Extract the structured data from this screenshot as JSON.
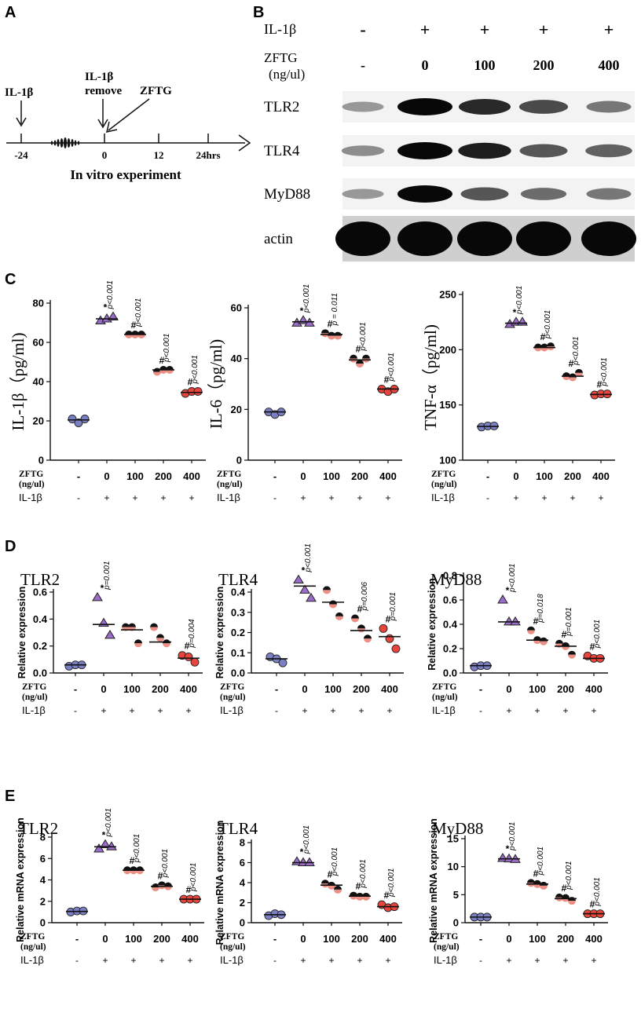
{
  "panel_letters": [
    "A",
    "B",
    "C",
    "D",
    "E"
  ],
  "timeline": {
    "il1b": "IL-1β",
    "remove_l1": "IL-1β",
    "remove_l2": "remove",
    "zftg": "ZFTG",
    "ticks": [
      "-24",
      "0",
      "12",
      "24hrs"
    ],
    "caption": "In vitro experiment"
  },
  "blot": {
    "il1b_label": "IL-1β",
    "zftg_label_l1": "ZFTG",
    "zftg_label_l2": "(ng/ul)",
    "il1b_signs": [
      "-",
      "+",
      "+",
      "+",
      "+"
    ],
    "zftg_doses": [
      "-",
      "0",
      "100",
      "200",
      "400"
    ],
    "rows": [
      {
        "name": "TLR2",
        "intensity": [
          0.35,
          1.0,
          0.85,
          0.7,
          0.5
        ]
      },
      {
        "name": "TLR4",
        "intensity": [
          0.4,
          1.0,
          0.9,
          0.65,
          0.6
        ]
      },
      {
        "name": "MyD88",
        "intensity": [
          0.35,
          1.0,
          0.65,
          0.55,
          0.5
        ]
      },
      {
        "name": "actin",
        "intensity": [
          1.0,
          1.0,
          1.0,
          1.0,
          1.0
        ]
      }
    ]
  },
  "axis_labels": {
    "zftg_l1": "ZFTG",
    "zftg_l2": "(ng/ul)",
    "il1b": "IL-1β",
    "doses": [
      "-",
      "0",
      "100",
      "200",
      "400"
    ],
    "il1b_signs": [
      "-",
      "+",
      "+",
      "+",
      "+"
    ]
  },
  "colors": {
    "control": "#7b7fc4",
    "il1b": "#9b6cc9",
    "d100": "#ec8f85",
    "d200": "#ec8f85",
    "d400": "#e8453c",
    "black": "#111111"
  },
  "chart_data": [
    {
      "id": "C1",
      "panel": "C",
      "type": "scatter",
      "ylabel": "IL-1β（pg/ml)",
      "ylabel_style": "serif",
      "ylim": [
        0,
        80
      ],
      "yticks": [
        "0",
        "20",
        "40",
        "60",
        "80"
      ],
      "categories": [
        "-",
        "0",
        "100",
        "200",
        "400"
      ],
      "points": [
        [
          21,
          19,
          21
        ],
        [
          71,
          72,
          73
        ],
        [
          64,
          64,
          64
        ],
        [
          45,
          46,
          46
        ],
        [
          34,
          35,
          35
        ]
      ],
      "means": [
        20.5,
        72,
        64,
        46,
        34.5
      ],
      "stars": [
        "",
        "*",
        "#",
        "#",
        "#"
      ],
      "pvalues": [
        "",
        "p<0.001",
        "p<0.001",
        "p<0.001",
        "p<0.001"
      ]
    },
    {
      "id": "C2",
      "panel": "C",
      "type": "scatter",
      "ylabel": "IL-6（pg/ml)",
      "ylabel_style": "serif",
      "ylim": [
        0,
        60
      ],
      "yticks": [
        "0",
        "20",
        "40",
        "60"
      ],
      "categories": [
        "-",
        "0",
        "100",
        "200",
        "400"
      ],
      "points": [
        [
          19,
          18,
          19
        ],
        [
          54,
          55,
          54
        ],
        [
          50,
          49,
          49
        ],
        [
          40,
          38,
          40
        ],
        [
          28,
          27,
          28
        ]
      ],
      "means": [
        19,
        54.5,
        49.5,
        39.5,
        28
      ],
      "stars": [
        "",
        "*",
        "#",
        "#",
        "#"
      ],
      "pvalues": [
        "",
        "p<0.001",
        "p = 0.011",
        "p<0.001",
        "p<0.001"
      ]
    },
    {
      "id": "C3",
      "panel": "C",
      "type": "scatter",
      "ylabel": "TNF-α（pg/ml)",
      "ylabel_style": "serif",
      "ylim": [
        100,
        250
      ],
      "yticks": [
        "100",
        "150",
        "200",
        "250"
      ],
      "categories": [
        "-",
        "0",
        "100",
        "200",
        "400"
      ],
      "points": [
        [
          130,
          131,
          131
        ],
        [
          223,
          225,
          225
        ],
        [
          202,
          202,
          203
        ],
        [
          176,
          175,
          179
        ],
        [
          159,
          160,
          160
        ]
      ],
      "means": [
        130.5,
        224,
        202,
        176,
        159.5
      ],
      "stars": [
        "",
        "*",
        "#",
        "#",
        "#"
      ],
      "pvalues": [
        "",
        "p<0.001",
        "p<0.001",
        "p<0.001",
        "p<0.001"
      ]
    },
    {
      "id": "D1",
      "panel": "D",
      "type": "scatter",
      "title": "TLR2",
      "ylabel": "Relative expression",
      "ylim": [
        0,
        0.6
      ],
      "yticks": [
        "0.0",
        "0.2",
        "0.4",
        "0.6"
      ],
      "categories": [
        "-",
        "0",
        "100",
        "200",
        "400"
      ],
      "points": [
        [
          0.05,
          0.06,
          0.06
        ],
        [
          0.56,
          0.37,
          0.28
        ],
        [
          0.34,
          0.34,
          0.22
        ],
        [
          0.34,
          0.26,
          0.22
        ],
        [
          0.13,
          0.12,
          0.08
        ]
      ],
      "means": [
        0.06,
        0.36,
        0.32,
        0.23,
        0.11
      ],
      "stars": [
        "",
        "*",
        "",
        "",
        "#"
      ],
      "pvalues": [
        "",
        "p=0.001",
        "",
        "",
        "p=0.004"
      ]
    },
    {
      "id": "D2",
      "panel": "D",
      "type": "scatter",
      "title": "TLR4",
      "ylabel": "Relative expression",
      "ylim": [
        0,
        0.4
      ],
      "yticks": [
        "0.0",
        "0.1",
        "0.2",
        "0.3",
        "0.4"
      ],
      "categories": [
        "-",
        "0",
        "100",
        "200",
        "400"
      ],
      "points": [
        [
          0.08,
          0.07,
          0.05
        ],
        [
          0.46,
          0.41,
          0.37
        ],
        [
          0.41,
          0.34,
          0.28
        ],
        [
          0.27,
          0.22,
          0.17
        ],
        [
          0.22,
          0.17,
          0.12
        ]
      ],
      "means": [
        0.07,
        0.43,
        0.35,
        0.21,
        0.18
      ],
      "stars": [
        "",
        "*",
        "",
        "#",
        "#"
      ],
      "pvalues": [
        "",
        "p<0.001",
        "",
        "p=0.006",
        "p=0.001"
      ]
    },
    {
      "id": "D3",
      "panel": "D",
      "type": "scatter",
      "title": "MyD88",
      "ylabel": "Relative expression",
      "ylim": [
        0,
        0.8
      ],
      "yticks": [
        "0.0",
        "0.2",
        "0.4",
        "0.6",
        "0.8"
      ],
      "categories": [
        "-",
        "0",
        "100",
        "200",
        "400"
      ],
      "points": [
        [
          0.05,
          0.06,
          0.06
        ],
        [
          0.6,
          0.42,
          0.42
        ],
        [
          0.35,
          0.27,
          0.26
        ],
        [
          0.24,
          0.22,
          0.15
        ],
        [
          0.14,
          0.12,
          0.12
        ]
      ],
      "means": [
        0.06,
        0.42,
        0.27,
        0.22,
        0.12
      ],
      "stars": [
        "",
        "*",
        "#",
        "#",
        "#"
      ],
      "pvalues": [
        "",
        "p<0.001",
        "p=0.018",
        "p=0.001",
        "p<0.001"
      ]
    },
    {
      "id": "E1",
      "panel": "E",
      "type": "scatter",
      "title": "TLR2",
      "ylabel": "Relative mRNA expression",
      "ylim": [
        0,
        8
      ],
      "yticks": [
        "0",
        "2",
        "4",
        "6",
        "8"
      ],
      "categories": [
        "-",
        "0",
        "100",
        "200",
        "400"
      ],
      "points": [
        [
          1.0,
          1.1,
          1.1
        ],
        [
          6.9,
          7.3,
          7.1
        ],
        [
          4.9,
          4.9,
          4.9
        ],
        [
          3.3,
          3.5,
          3.4
        ],
        [
          2.2,
          2.2,
          2.2
        ]
      ],
      "means": [
        1.05,
        7.1,
        4.9,
        3.4,
        2.2
      ],
      "stars": [
        "",
        "*",
        "#",
        "#",
        "#"
      ],
      "pvalues": [
        "",
        "p<0.001",
        "p<0.001",
        "p<0.001",
        "p<0.001"
      ]
    },
    {
      "id": "E2",
      "panel": "E",
      "type": "scatter",
      "title": "TLR4",
      "ylabel": "Relative mRNA expression",
      "ylim": [
        0,
        8
      ],
      "yticks": [
        "0",
        "2",
        "4",
        "6",
        "8"
      ],
      "categories": [
        "-",
        "0",
        "100",
        "200",
        "400"
      ],
      "points": [
        [
          0.7,
          0.9,
          0.8
        ],
        [
          6.1,
          6.0,
          6.0
        ],
        [
          3.9,
          3.7,
          3.3
        ],
        [
          2.7,
          2.6,
          2.6
        ],
        [
          1.8,
          1.5,
          1.6
        ]
      ],
      "means": [
        0.8,
        6.0,
        3.75,
        2.65,
        1.6
      ],
      "stars": [
        "",
        "*",
        "#",
        "#",
        "#"
      ],
      "pvalues": [
        "",
        "p<0.001",
        "p<0.001",
        "p<0.001",
        "p<0.001"
      ]
    },
    {
      "id": "E3",
      "panel": "E",
      "type": "scatter",
      "title": "MyD88",
      "ylabel": "Relative mRNA expression",
      "ylim": [
        0,
        15
      ],
      "yticks": [
        "0",
        "5",
        "10",
        "15"
      ],
      "categories": [
        "-",
        "0",
        "100",
        "200",
        "400"
      ],
      "points": [
        [
          1.0,
          1.0,
          1.0
        ],
        [
          11.5,
          11.4,
          11.3
        ],
        [
          7.1,
          6.9,
          6.6
        ],
        [
          4.5,
          4.4,
          3.9
        ],
        [
          1.6,
          1.6,
          1.6
        ]
      ],
      "means": [
        1.0,
        11.4,
        6.9,
        4.3,
        1.6
      ],
      "stars": [
        "",
        "*",
        "#",
        "#",
        "#"
      ],
      "pvalues": [
        "",
        "p<0.001",
        "p<0.001",
        "p<0.001",
        "p<0.001"
      ]
    }
  ]
}
